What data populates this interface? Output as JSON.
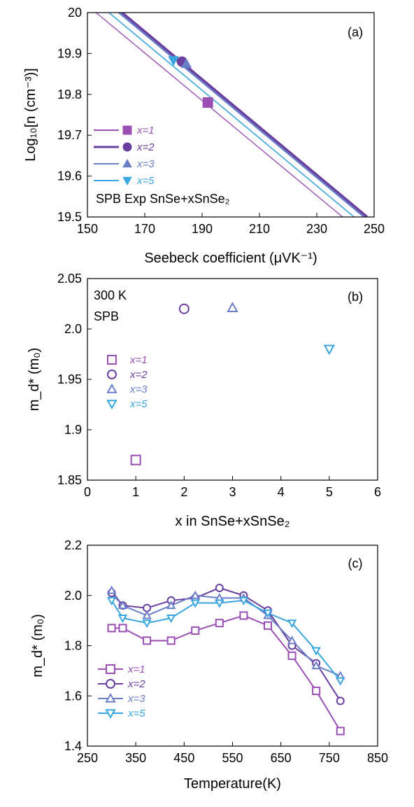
{
  "colors": {
    "x1": "#9b4fb5",
    "x2": "#6a3fa0",
    "x3": "#6b7fc8",
    "x5": "#3aa6e0"
  },
  "chart_data": [
    {
      "type": "line",
      "panel_label": "(a)",
      "xlabel": "Seebeck coefficient (μVK⁻¹)",
      "ylabel": "Log₁₀[n (cm⁻³)]",
      "xlim": [
        150,
        250
      ],
      "ylim": [
        19.5,
        20.0
      ],
      "xticks": [
        "150",
        "170",
        "190",
        "210",
        "230",
        "250"
      ],
      "yticks": [
        "19.5",
        "19.6",
        "19.7",
        "19.8",
        "19.9",
        "20"
      ],
      "annotation": "SPB Exp SnSe+xSnSe₂",
      "series": [
        {
          "name": "x=1",
          "key": "x1",
          "marker": "square-filled",
          "line": [
            [
              153.0,
              20.0
            ],
            [
              239.0,
              19.5
            ]
          ],
          "points": [
            [
              192,
              19.78
            ]
          ]
        },
        {
          "name": "x=2",
          "key": "x2",
          "marker": "circle-filled",
          "line": [
            [
              162.0,
              20.0
            ],
            [
              247.5,
              19.5
            ]
          ],
          "points": [
            [
              183,
              19.88
            ]
          ]
        },
        {
          "name": "x=3",
          "key": "x3",
          "marker": "triangle-up-filled",
          "line": [
            [
              161.0,
              20.0
            ],
            [
              246.5,
              19.5
            ]
          ],
          "points": [
            [
              184.5,
              19.875
            ]
          ]
        },
        {
          "name": "x=5",
          "key": "x5",
          "marker": "triangle-down-filled",
          "line": [
            [
              157.5,
              20.0
            ],
            [
              243.0,
              19.5
            ]
          ],
          "points": [
            [
              180,
              19.883
            ]
          ]
        }
      ]
    },
    {
      "type": "scatter",
      "panel_label": "(b)",
      "xlabel": "x in SnSe+xSnSe₂",
      "ylabel": "m_d* (m₀)",
      "xlim": [
        0,
        6
      ],
      "ylim": [
        1.85,
        2.05
      ],
      "xticks": [
        "0",
        "1",
        "2",
        "3",
        "4",
        "5",
        "6"
      ],
      "yticks": [
        "1.85",
        "1.9",
        "1.95",
        "2.0",
        "2.05"
      ],
      "annotation": [
        "300 K",
        "SPB"
      ],
      "series": [
        {
          "name": "x=1",
          "key": "x1",
          "marker": "square-open",
          "points": [
            [
              1,
              1.87
            ]
          ]
        },
        {
          "name": "x=2",
          "key": "x2",
          "marker": "circle-open",
          "points": [
            [
              2,
              2.02
            ]
          ]
        },
        {
          "name": "x=3",
          "key": "x3",
          "marker": "triangle-up-open",
          "points": [
            [
              3,
              2.021
            ]
          ]
        },
        {
          "name": "x=5",
          "key": "x5",
          "marker": "triangle-down-open",
          "points": [
            [
              5,
              1.98
            ]
          ]
        }
      ]
    },
    {
      "type": "line",
      "panel_label": "(c)",
      "xlabel": "Temperature(K)",
      "ylabel": "m_d* (m₀)",
      "xlim": [
        250,
        850
      ],
      "ylim": [
        1.4,
        2.2
      ],
      "xticks": [
        "250",
        "350",
        "450",
        "550",
        "650",
        "750",
        "850"
      ],
      "yticks": [
        "1.4",
        "1.6",
        "1.8",
        "2.0",
        "2.2"
      ],
      "series": [
        {
          "name": "x=1",
          "key": "x1",
          "marker": "square-open",
          "x": [
            300,
            323,
            373,
            423,
            473,
            523,
            573,
            623,
            673,
            723,
            773
          ],
          "y": [
            1.87,
            1.87,
            1.82,
            1.82,
            1.86,
            1.89,
            1.92,
            1.88,
            1.76,
            1.62,
            1.46
          ]
        },
        {
          "name": "x=2",
          "key": "x2",
          "marker": "circle-open",
          "x": [
            300,
            323,
            373,
            423,
            473,
            523,
            573,
            623,
            673,
            723,
            773
          ],
          "y": [
            2.01,
            1.96,
            1.95,
            1.98,
            1.99,
            2.03,
            2.0,
            1.94,
            1.8,
            1.73,
            1.58
          ]
        },
        {
          "name": "x=3",
          "key": "x3",
          "marker": "triangle-up-open",
          "x": [
            300,
            323,
            373,
            423,
            473,
            523,
            573,
            623,
            673,
            723,
            773
          ],
          "y": [
            2.02,
            1.96,
            1.92,
            1.96,
            2.0,
            1.99,
            1.99,
            1.92,
            1.82,
            1.72,
            1.68
          ]
        },
        {
          "name": "x=5",
          "key": "x5",
          "marker": "triangle-down-open",
          "x": [
            300,
            323,
            373,
            423,
            473,
            523,
            573,
            623,
            673,
            723,
            773
          ],
          "y": [
            1.98,
            1.91,
            1.89,
            1.91,
            1.97,
            1.97,
            1.98,
            1.93,
            1.89,
            1.78,
            1.66
          ]
        }
      ]
    }
  ]
}
